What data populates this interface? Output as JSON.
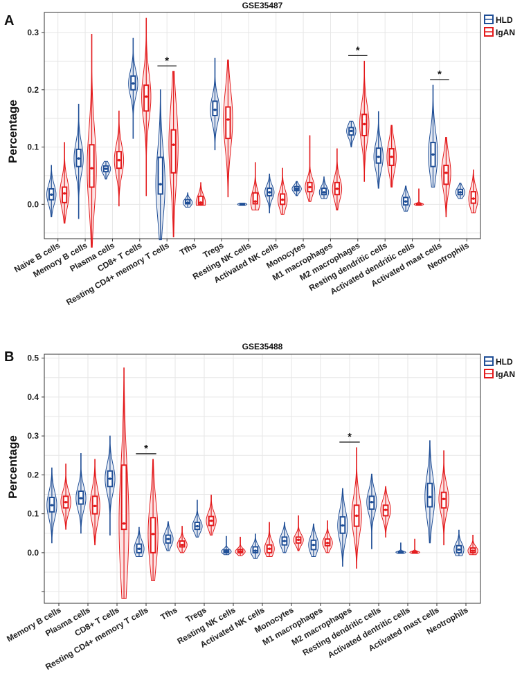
{
  "colors": {
    "hld": "#1f4e96",
    "igan": "#e31a1c",
    "grid": "#e6e6e6",
    "frame": "#333333"
  },
  "legend": {
    "hld": "HLD",
    "igan": "IgAN"
  },
  "significance_symbol": "*",
  "chart_data": [
    {
      "panel": "A",
      "type": "violin-box",
      "title": "GSE35487",
      "ylabel": "Percentage",
      "xlabel": "",
      "ylim": [
        -0.06,
        0.335
      ],
      "yticks": [
        0.0,
        0.1,
        0.2,
        0.3
      ],
      "ytick_labels": [
        "0.0",
        "0.1",
        "0.2",
        "0.3"
      ],
      "extra_ytick": null,
      "legend_position": "top-right",
      "categories": [
        "Naive B cells",
        "Memory B cells",
        "Plasma cells",
        "CD8+ T cells",
        "Resting CD4+ memory T cells",
        "Tfhs",
        "Tregs",
        "Resting NK cells",
        "Activated NK cells",
        "Monocytes",
        "M1 macrophages",
        "M2 macrophages",
        "Resting dendritic cells",
        "Activated dendritic cells",
        "Activated mast cells",
        "Neotrophils"
      ],
      "significant": [
        "Resting CD4+ memory T cells",
        "M2 macrophages",
        "Activated mast cells"
      ],
      "series": [
        {
          "name": "HLD",
          "stats": [
            {
              "min": -0.022,
              "q1": 0.008,
              "median": 0.017,
              "q3": 0.027,
              "max": 0.068
            },
            {
              "min": -0.025,
              "q1": 0.066,
              "median": 0.08,
              "q3": 0.096,
              "max": 0.175
            },
            {
              "min": 0.044,
              "q1": 0.057,
              "median": 0.062,
              "q3": 0.067,
              "max": 0.075
            },
            {
              "min": 0.115,
              "q1": 0.2,
              "median": 0.211,
              "q3": 0.224,
              "max": 0.29
            },
            {
              "min": -0.062,
              "q1": 0.018,
              "median": 0.035,
              "q3": 0.082,
              "max": 0.2
            },
            {
              "min": -0.005,
              "q1": 0.001,
              "median": 0.003,
              "q3": 0.008,
              "max": 0.02
            },
            {
              "min": 0.095,
              "q1": 0.155,
              "median": 0.165,
              "q3": 0.18,
              "max": 0.255
            },
            {
              "min": -0.002,
              "q1": -0.001,
              "median": 0.0,
              "q3": 0.001,
              "max": 0.002
            },
            {
              "min": -0.015,
              "q1": 0.015,
              "median": 0.021,
              "q3": 0.028,
              "max": 0.053
            },
            {
              "min": 0.015,
              "q1": 0.024,
              "median": 0.027,
              "q3": 0.031,
              "max": 0.04
            },
            {
              "min": 0.01,
              "q1": 0.017,
              "median": 0.021,
              "q3": 0.028,
              "max": 0.048
            },
            {
              "min": 0.1,
              "q1": 0.121,
              "median": 0.128,
              "q3": 0.134,
              "max": 0.145
            },
            {
              "min": 0.028,
              "q1": 0.072,
              "median": 0.083,
              "q3": 0.098,
              "max": 0.162
            },
            {
              "min": -0.012,
              "q1": -0.001,
              "median": 0.005,
              "q3": 0.012,
              "max": 0.032
            },
            {
              "min": 0.03,
              "q1": 0.066,
              "median": 0.087,
              "q3": 0.108,
              "max": 0.208
            },
            {
              "min": 0.01,
              "q1": 0.017,
              "median": 0.021,
              "q3": 0.026,
              "max": 0.037
            }
          ]
        },
        {
          "name": "IgAN",
          "stats": [
            {
              "min": -0.033,
              "q1": 0.003,
              "median": 0.019,
              "q3": 0.03,
              "max": 0.108
            },
            {
              "min": -0.075,
              "q1": 0.03,
              "median": 0.063,
              "q3": 0.104,
              "max": 0.297
            },
            {
              "min": -0.003,
              "q1": 0.063,
              "median": 0.077,
              "q3": 0.092,
              "max": 0.163
            },
            {
              "min": 0.015,
              "q1": 0.163,
              "median": 0.188,
              "q3": 0.208,
              "max": 0.325
            },
            {
              "min": -0.057,
              "q1": 0.055,
              "median": 0.104,
              "q3": 0.13,
              "max": 0.232
            },
            {
              "min": -0.002,
              "q1": 0.0,
              "median": 0.003,
              "q3": 0.014,
              "max": 0.038
            },
            {
              "min": 0.013,
              "q1": 0.115,
              "median": 0.148,
              "q3": 0.17,
              "max": 0.252
            },
            {
              "min": -0.01,
              "q1": 0.001,
              "median": 0.005,
              "q3": 0.02,
              "max": 0.073
            },
            {
              "min": -0.018,
              "q1": 0.0,
              "median": 0.008,
              "q3": 0.018,
              "max": 0.063
            },
            {
              "min": 0.005,
              "q1": 0.022,
              "median": 0.03,
              "q3": 0.038,
              "max": 0.12
            },
            {
              "min": -0.01,
              "q1": 0.017,
              "median": 0.027,
              "q3": 0.038,
              "max": 0.097
            },
            {
              "min": 0.04,
              "q1": 0.12,
              "median": 0.14,
              "q3": 0.157,
              "max": 0.25
            },
            {
              "min": 0.03,
              "q1": 0.068,
              "median": 0.083,
              "q3": 0.097,
              "max": 0.138
            },
            {
              "min": -0.002,
              "q1": -0.001,
              "median": 0.0,
              "q3": 0.001,
              "max": 0.027
            },
            {
              "min": -0.022,
              "q1": 0.035,
              "median": 0.055,
              "q3": 0.068,
              "max": 0.117
            },
            {
              "min": -0.015,
              "q1": 0.002,
              "median": 0.01,
              "q3": 0.022,
              "max": 0.06
            }
          ]
        }
      ]
    },
    {
      "panel": "B",
      "type": "violin-box",
      "title": "GSE35488",
      "ylabel": "Percentage",
      "xlabel": "",
      "ylim": [
        -0.13,
        0.51
      ],
      "yticks": [
        0.0,
        0.1,
        0.2,
        0.3,
        0.4,
        0.5
      ],
      "ytick_labels": [
        "0.0",
        "0.1",
        "0.2",
        "0.3",
        "0.4",
        "0.5"
      ],
      "extra_ytick": -0.1,
      "legend_position": "top-right",
      "categories": [
        "Memory B cells",
        "Plasma cells",
        "CD8+ T cells",
        "Resting CD4+ memory T cells",
        "Tfhs",
        "Tregs",
        "Resting NK cells",
        "Activated NK cells",
        "Monocytes",
        "M1 macrophages",
        "M2 macrophages",
        "Resting dendritic cells",
        "Activated dentritic cells",
        "Activated mast cells",
        "Neotrophils"
      ],
      "significant": [
        "Resting CD4+ memory T cells",
        "M2 macrophages"
      ],
      "series": [
        {
          "name": "HLD",
          "stats": [
            {
              "min": 0.025,
              "q1": 0.105,
              "median": 0.122,
              "q3": 0.142,
              "max": 0.218
            },
            {
              "min": 0.05,
              "q1": 0.125,
              "median": 0.14,
              "q3": 0.158,
              "max": 0.255
            },
            {
              "min": 0.045,
              "q1": 0.17,
              "median": 0.19,
              "q3": 0.21,
              "max": 0.3
            },
            {
              "min": -0.01,
              "q1": 0.0,
              "median": 0.01,
              "q3": 0.022,
              "max": 0.065
            },
            {
              "min": 0.005,
              "q1": 0.025,
              "median": 0.035,
              "q3": 0.045,
              "max": 0.08
            },
            {
              "min": 0.04,
              "q1": 0.06,
              "median": 0.068,
              "q3": 0.078,
              "max": 0.135
            },
            {
              "min": -0.005,
              "q1": 0.0,
              "median": 0.003,
              "q3": 0.007,
              "max": 0.042
            },
            {
              "min": -0.015,
              "q1": 0.0,
              "median": 0.005,
              "q3": 0.015,
              "max": 0.048
            },
            {
              "min": 0.0,
              "q1": 0.02,
              "median": 0.03,
              "q3": 0.04,
              "max": 0.078
            },
            {
              "min": -0.01,
              "q1": 0.008,
              "median": 0.02,
              "q3": 0.032,
              "max": 0.074
            },
            {
              "min": -0.035,
              "q1": 0.05,
              "median": 0.07,
              "q3": 0.092,
              "max": 0.165
            },
            {
              "min": 0.01,
              "q1": 0.112,
              "median": 0.13,
              "q3": 0.145,
              "max": 0.202
            },
            {
              "min": -0.002,
              "q1": 0.0,
              "median": 0.001,
              "q3": 0.003,
              "max": 0.025
            },
            {
              "min": 0.025,
              "q1": 0.118,
              "median": 0.143,
              "q3": 0.178,
              "max": 0.288
            },
            {
              "min": -0.008,
              "q1": 0.0,
              "median": 0.008,
              "q3": 0.018,
              "max": 0.058
            }
          ]
        },
        {
          "name": "IgAN",
          "stats": [
            {
              "min": 0.06,
              "q1": 0.115,
              "median": 0.13,
              "q3": 0.145,
              "max": 0.228
            },
            {
              "min": 0.02,
              "q1": 0.1,
              "median": 0.12,
              "q3": 0.145,
              "max": 0.24
            },
            {
              "min": -0.118,
              "q1": 0.06,
              "median": 0.075,
              "q3": 0.225,
              "max": 0.475
            },
            {
              "min": -0.072,
              "q1": 0.0,
              "median": 0.048,
              "q3": 0.09,
              "max": 0.24
            },
            {
              "min": 0.0,
              "q1": 0.015,
              "median": 0.02,
              "q3": 0.03,
              "max": 0.068
            },
            {
              "min": 0.045,
              "q1": 0.07,
              "median": 0.082,
              "q3": 0.093,
              "max": 0.148
            },
            {
              "min": -0.008,
              "q1": 0.0,
              "median": 0.003,
              "q3": 0.008,
              "max": 0.04
            },
            {
              "min": -0.01,
              "q1": 0.0,
              "median": 0.01,
              "q3": 0.02,
              "max": 0.078
            },
            {
              "min": 0.005,
              "q1": 0.025,
              "median": 0.033,
              "q3": 0.04,
              "max": 0.095
            },
            {
              "min": 0.0,
              "q1": 0.018,
              "median": 0.025,
              "q3": 0.035,
              "max": 0.082
            },
            {
              "min": -0.04,
              "q1": 0.068,
              "median": 0.095,
              "q3": 0.122,
              "max": 0.27
            },
            {
              "min": 0.04,
              "q1": 0.095,
              "median": 0.11,
              "q3": 0.122,
              "max": 0.17
            },
            {
              "min": -0.002,
              "q1": 0.0,
              "median": 0.001,
              "q3": 0.003,
              "max": 0.035
            },
            {
              "min": 0.02,
              "q1": 0.115,
              "median": 0.138,
              "q3": 0.155,
              "max": 0.262
            },
            {
              "min": -0.005,
              "q1": 0.0,
              "median": 0.005,
              "q3": 0.012,
              "max": 0.045
            }
          ]
        }
      ]
    }
  ]
}
